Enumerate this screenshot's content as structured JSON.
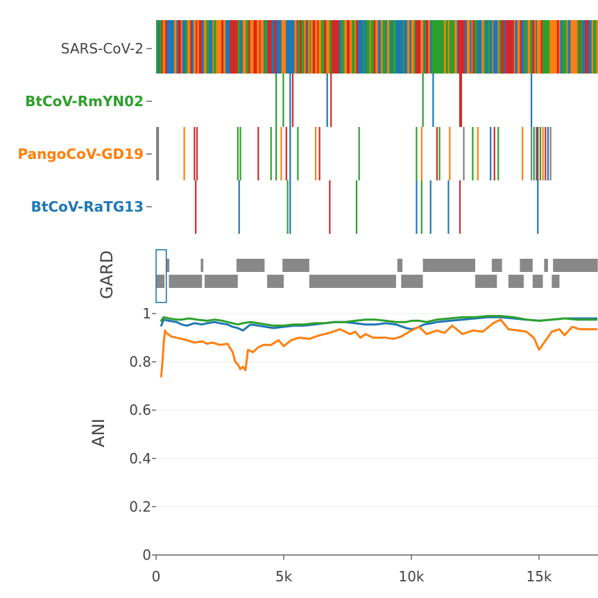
{
  "chart_data": {
    "type": "line",
    "colors": {
      "SARS-CoV-2": "#444444",
      "BtCoV-RmYN02": "#2ca02c",
      "PangoCoV-GD19": "#ff7f0e",
      "BtCoV-RaTG13": "#1f77b4",
      "gard": "#888888",
      "selection": "#1f77b4"
    },
    "variant_tracks": [
      {
        "name": "SARS-CoV-2",
        "color": "#444444",
        "full": true
      },
      {
        "name": "BtCoV-RmYN02",
        "color": "#2ca02c",
        "sites": [
          {
            "x": 4700,
            "c": "#2ca02c"
          },
          {
            "x": 4980,
            "c": "#2ca02c"
          },
          {
            "x": 5250,
            "c": "#1f77b4"
          },
          {
            "x": 5350,
            "c": "#d62728"
          },
          {
            "x": 6700,
            "c": "#1f77b4"
          },
          {
            "x": 6850,
            "c": "#d62728"
          },
          {
            "x": 10450,
            "c": "#2ca02c"
          },
          {
            "x": 10850,
            "c": "#1f77b4"
          },
          {
            "x": 11900,
            "c": "#d62728"
          },
          {
            "x": 11950,
            "c": "#d62728"
          },
          {
            "x": 14700,
            "c": "#1f77b4"
          }
        ]
      },
      {
        "name": "PangoCoV-GD19",
        "color": "#ff7f0e",
        "sites": [
          {
            "x": 30,
            "c": "#7f7f7f"
          },
          {
            "x": 80,
            "c": "#7f7f7f"
          },
          {
            "x": 1100,
            "c": "#ff7f0e"
          },
          {
            "x": 1500,
            "c": "#d62728"
          },
          {
            "x": 1600,
            "c": "#d62728"
          },
          {
            "x": 3200,
            "c": "#2ca02c"
          },
          {
            "x": 3300,
            "c": "#2ca02c"
          },
          {
            "x": 4000,
            "c": "#d62728"
          },
          {
            "x": 4500,
            "c": "#2ca02c"
          },
          {
            "x": 4700,
            "c": "#2ca02c"
          },
          {
            "x": 4900,
            "c": "#ff7f0e"
          },
          {
            "x": 5100,
            "c": "#d62728"
          },
          {
            "x": 5250,
            "c": "#1f77b4"
          },
          {
            "x": 5550,
            "c": "#2ca02c"
          },
          {
            "x": 6250,
            "c": "#ff7f0e"
          },
          {
            "x": 6400,
            "c": "#d62728"
          },
          {
            "x": 7950,
            "c": "#2ca02c"
          },
          {
            "x": 10200,
            "c": "#2ca02c"
          },
          {
            "x": 10400,
            "c": "#ff7f0e"
          },
          {
            "x": 11000,
            "c": "#d62728"
          },
          {
            "x": 11100,
            "c": "#2ca02c"
          },
          {
            "x": 11500,
            "c": "#ff7f0e"
          },
          {
            "x": 12050,
            "c": "#7f7f7f"
          },
          {
            "x": 12400,
            "c": "#2ca02c"
          },
          {
            "x": 12600,
            "c": "#ff7f0e"
          },
          {
            "x": 13100,
            "c": "#1f77b4"
          },
          {
            "x": 13250,
            "c": "#d62728"
          },
          {
            "x": 13400,
            "c": "#2ca02c"
          },
          {
            "x": 14350,
            "c": "#ff7f0e"
          },
          {
            "x": 14700,
            "c": "#7f7f7f"
          },
          {
            "x": 14800,
            "c": "#2ca02c"
          },
          {
            "x": 14900,
            "c": "#1f77b4"
          },
          {
            "x": 14950,
            "c": "#d62728"
          },
          {
            "x": 15050,
            "c": "#2ca02c"
          },
          {
            "x": 15150,
            "c": "#ff7f0e"
          },
          {
            "x": 15250,
            "c": "#d62728"
          },
          {
            "x": 15350,
            "c": "#1f77b4"
          },
          {
            "x": 15450,
            "c": "#7f7f7f"
          }
        ]
      },
      {
        "name": "BtCoV-RaTG13",
        "color": "#1f77b4",
        "sites": [
          {
            "x": 1550,
            "c": "#d62728"
          },
          {
            "x": 3250,
            "c": "#1f77b4"
          },
          {
            "x": 5150,
            "c": "#2ca02c"
          },
          {
            "x": 5250,
            "c": "#1f77b4"
          },
          {
            "x": 6800,
            "c": "#d62728"
          },
          {
            "x": 7850,
            "c": "#2ca02c"
          },
          {
            "x": 10200,
            "c": "#1f77b4"
          },
          {
            "x": 10400,
            "c": "#2ca02c"
          },
          {
            "x": 10750,
            "c": "#1f77b4"
          },
          {
            "x": 11450,
            "c": "#1f77b4"
          },
          {
            "x": 11900,
            "c": "#d62728"
          },
          {
            "x": 14950,
            "c": "#1f77b4"
          }
        ]
      }
    ],
    "gard": {
      "label": "GARD",
      "top_row": [
        [
          380,
          520
        ],
        [
          1750,
          1850
        ],
        [
          3150,
          4250
        ],
        [
          4950,
          6000
        ],
        [
          9450,
          9650
        ],
        [
          10450,
          12500
        ],
        [
          13150,
          13550
        ],
        [
          14250,
          14750
        ],
        [
          15200,
          15350
        ],
        [
          15550,
          17300
        ]
      ],
      "bottom_row": [
        [
          0,
          330
        ],
        [
          500,
          1800
        ],
        [
          1900,
          3200
        ],
        [
          4350,
          5000
        ],
        [
          6000,
          9400
        ],
        [
          9600,
          10450
        ],
        [
          12500,
          13350
        ],
        [
          13800,
          14400
        ],
        [
          14750,
          15150
        ],
        [
          15500,
          15800
        ]
      ]
    },
    "selection": {
      "x_start": 0,
      "x_end": 400
    },
    "ani": {
      "ylabel": "ANI",
      "xlim": [
        0,
        17250
      ],
      "ylim": [
        0,
        1
      ],
      "x_ticks": [
        0,
        5000,
        10000,
        15000
      ],
      "x_tick_labels": [
        "0",
        "5k",
        "10k",
        "15k"
      ],
      "y_ticks": [
        0,
        0.2,
        0.4,
        0.6,
        0.8,
        1
      ],
      "y_tick_labels": [
        "0",
        "0.2",
        "0.4",
        "0.6",
        "0.8",
        "1"
      ],
      "series": [
        {
          "name": "BtCoV-RaTG13",
          "color": "#1f77b4",
          "x": [
            200,
            300,
            500,
            800,
            1000,
            1200,
            1500,
            1800,
            2000,
            2300,
            2500,
            2800,
            3000,
            3200,
            3400,
            3700,
            4000,
            4300,
            4600,
            5000,
            5400,
            5800,
            6200,
            6600,
            7000,
            7400,
            7800,
            8200,
            8600,
            9000,
            9400,
            9800,
            10000,
            10200,
            10500,
            10800,
            11000,
            11500,
            12000,
            12500,
            13000,
            13500,
            14000,
            14500,
            15000,
            15500,
            16000,
            16500,
            17250
          ],
          "y": [
            0.95,
            0.975,
            0.97,
            0.965,
            0.955,
            0.95,
            0.96,
            0.955,
            0.96,
            0.965,
            0.96,
            0.955,
            0.945,
            0.94,
            0.93,
            0.955,
            0.95,
            0.945,
            0.94,
            0.945,
            0.95,
            0.95,
            0.955,
            0.96,
            0.965,
            0.965,
            0.96,
            0.955,
            0.955,
            0.96,
            0.955,
            0.94,
            0.935,
            0.94,
            0.955,
            0.96,
            0.965,
            0.97,
            0.975,
            0.98,
            0.985,
            0.985,
            0.98,
            0.975,
            0.97,
            0.975,
            0.98,
            0.98,
            0.98
          ]
        },
        {
          "name": "BtCoV-RmYN02",
          "color": "#2ca02c",
          "x": [
            200,
            300,
            500,
            800,
            1000,
            1300,
            1600,
            2000,
            2300,
            2600,
            3000,
            3200,
            3400,
            3700,
            4000,
            4300,
            4600,
            5000,
            5400,
            5800,
            6200,
            6600,
            7000,
            7400,
            7800,
            8200,
            8600,
            9000,
            9400,
            9800,
            10000,
            10300,
            10600,
            11000,
            11500,
            12000,
            12500,
            13000,
            13500,
            14000,
            14500,
            15000,
            15500,
            16000,
            16500,
            17250
          ],
          "y": [
            0.97,
            0.985,
            0.98,
            0.975,
            0.975,
            0.98,
            0.975,
            0.97,
            0.975,
            0.97,
            0.96,
            0.955,
            0.96,
            0.965,
            0.96,
            0.955,
            0.95,
            0.95,
            0.955,
            0.955,
            0.96,
            0.96,
            0.965,
            0.965,
            0.97,
            0.975,
            0.975,
            0.97,
            0.965,
            0.965,
            0.97,
            0.97,
            0.965,
            0.975,
            0.98,
            0.985,
            0.985,
            0.99,
            0.99,
            0.985,
            0.975,
            0.97,
            0.975,
            0.98,
            0.975,
            0.975
          ]
        },
        {
          "name": "PangoCoV-GD19",
          "color": "#ff7f0e",
          "x": [
            200,
            250,
            300,
            350,
            400,
            600,
            800,
            1000,
            1200,
            1500,
            1800,
            2000,
            2200,
            2500,
            2800,
            3000,
            3100,
            3200,
            3300,
            3400,
            3500,
            3600,
            3800,
            4000,
            4200,
            4500,
            4800,
            5000,
            5300,
            5600,
            6000,
            6400,
            6800,
            7200,
            7600,
            7800,
            8000,
            8200,
            8500,
            8800,
            9000,
            9300,
            9600,
            10000,
            10300,
            10600,
            11000,
            11300,
            11600,
            12000,
            12400,
            12800,
            13200,
            13500,
            13800,
            14200,
            14500,
            14800,
            15000,
            15200,
            15500,
            15800,
            16000,
            16300,
            16600,
            17250
          ],
          "y": [
            0.74,
            0.8,
            0.88,
            0.93,
            0.92,
            0.905,
            0.9,
            0.895,
            0.89,
            0.88,
            0.885,
            0.875,
            0.88,
            0.87,
            0.875,
            0.84,
            0.8,
            0.79,
            0.77,
            0.78,
            0.765,
            0.85,
            0.84,
            0.86,
            0.87,
            0.87,
            0.89,
            0.865,
            0.89,
            0.9,
            0.895,
            0.91,
            0.92,
            0.935,
            0.915,
            0.925,
            0.9,
            0.915,
            0.9,
            0.9,
            0.9,
            0.895,
            0.905,
            0.93,
            0.945,
            0.915,
            0.93,
            0.92,
            0.95,
            0.915,
            0.93,
            0.925,
            0.96,
            0.975,
            0.935,
            0.93,
            0.925,
            0.9,
            0.85,
            0.88,
            0.925,
            0.935,
            0.91,
            0.945,
            0.935,
            0.935
          ]
        }
      ]
    }
  }
}
